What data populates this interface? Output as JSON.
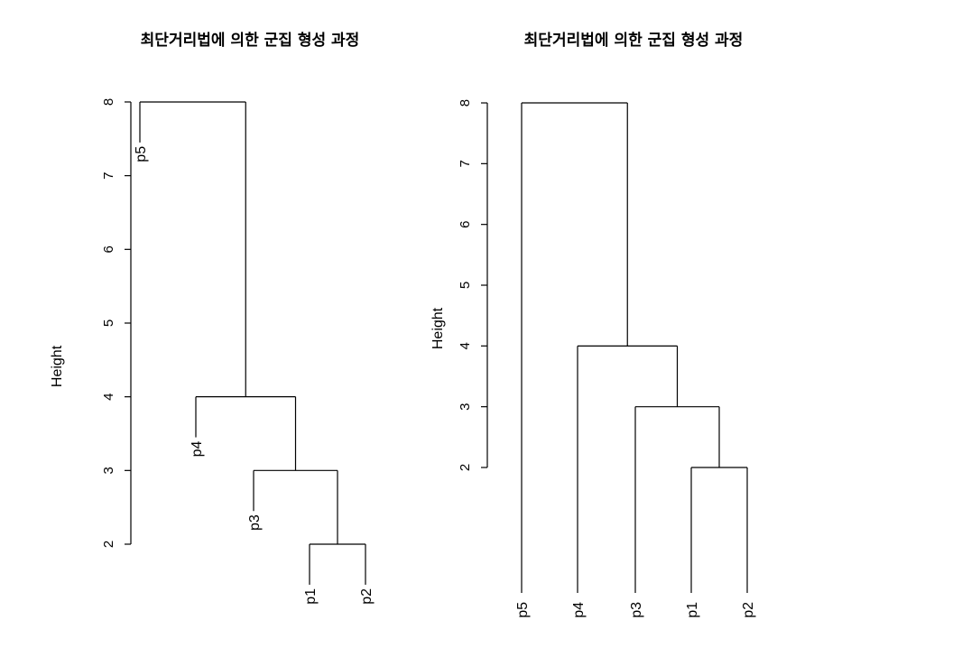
{
  "chart_data": [
    {
      "type": "dendrogram",
      "title": "최단거리법에 의한 군집 형성 과정",
      "ylabel": "Height",
      "ylim": [
        2,
        8
      ],
      "yticks": [
        "2",
        "3",
        "4",
        "5",
        "6",
        "7",
        "8"
      ],
      "hang": true,
      "leaves": [
        "p5",
        "p4",
        "p3",
        "p1",
        "p2"
      ],
      "merges": [
        {
          "a": "p1",
          "b": "p2",
          "height": 2
        },
        {
          "a": "p3",
          "b": "p1-p2",
          "height": 3
        },
        {
          "a": "p4",
          "b": "p1-p2-p3",
          "height": 4
        },
        {
          "a": "p5",
          "b": "p1-p2-p3-p4",
          "height": 8
        }
      ]
    },
    {
      "type": "dendrogram",
      "title": "최단거리법에 의한 군집 형성 과정",
      "ylabel": "Height",
      "ylim": [
        2,
        8
      ],
      "yticks": [
        "2",
        "3",
        "4",
        "5",
        "6",
        "7",
        "8"
      ],
      "hang": false,
      "leaves": [
        "p5",
        "p4",
        "p3",
        "p1",
        "p2"
      ],
      "merges": [
        {
          "a": "p1",
          "b": "p2",
          "height": 2
        },
        {
          "a": "p3",
          "b": "p1-p2",
          "height": 3
        },
        {
          "a": "p4",
          "b": "p1-p2-p3",
          "height": 4
        },
        {
          "a": "p5",
          "b": "p1-p2-p3-p4",
          "height": 8
        }
      ]
    }
  ]
}
